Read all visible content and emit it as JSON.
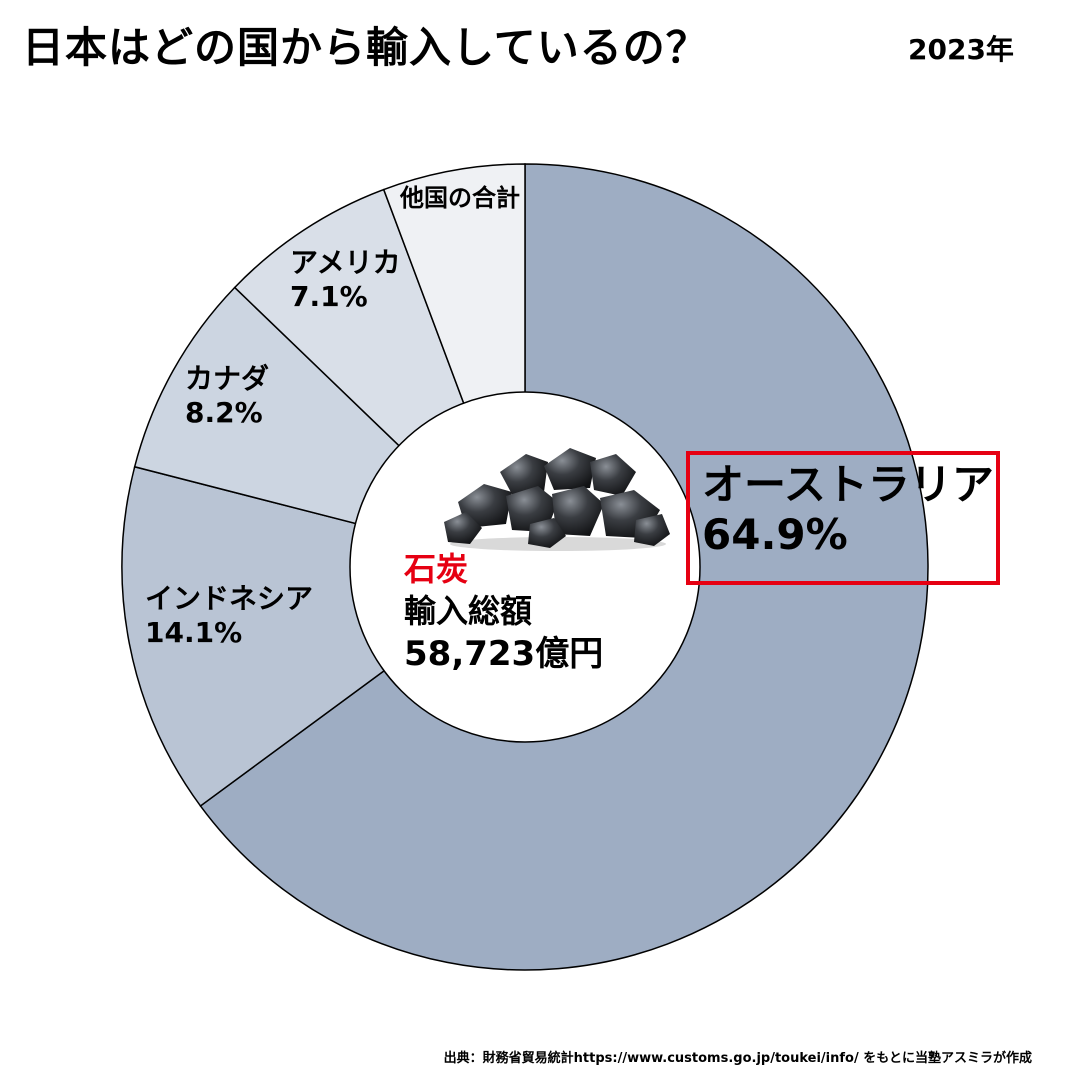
{
  "header": {
    "title": "日本はどの国から輸入しているの？",
    "year": "2023年"
  },
  "center": {
    "commodity": "石炭",
    "label": "輸入総額",
    "total": "58,723億円"
  },
  "chart_data": {
    "type": "pie",
    "style": "donut",
    "unit": "%",
    "slices": [
      {
        "name": "オーストラリア",
        "value": 64.9,
        "value_label": "64.9%",
        "color": "#9eadc3"
      },
      {
        "name": "インドネシア",
        "value": 14.1,
        "value_label": "14.1%",
        "color": "#b9c4d4"
      },
      {
        "name": "カナダ",
        "value": 8.2,
        "value_label": "8.2%",
        "color": "#ccd5e1"
      },
      {
        "name": "アメリカ",
        "value": 7.1,
        "value_label": "7.1%",
        "color": "#d9dfe8"
      },
      {
        "name": "他国の合計",
        "value": 5.7,
        "value_label": "",
        "color": "#eff1f4"
      }
    ],
    "highlight_color": "#e60012"
  },
  "source": "出典：財務省貿易統計https://www.customs.go.jp/toukei/info/  をもとに当塾アスミラが作成"
}
